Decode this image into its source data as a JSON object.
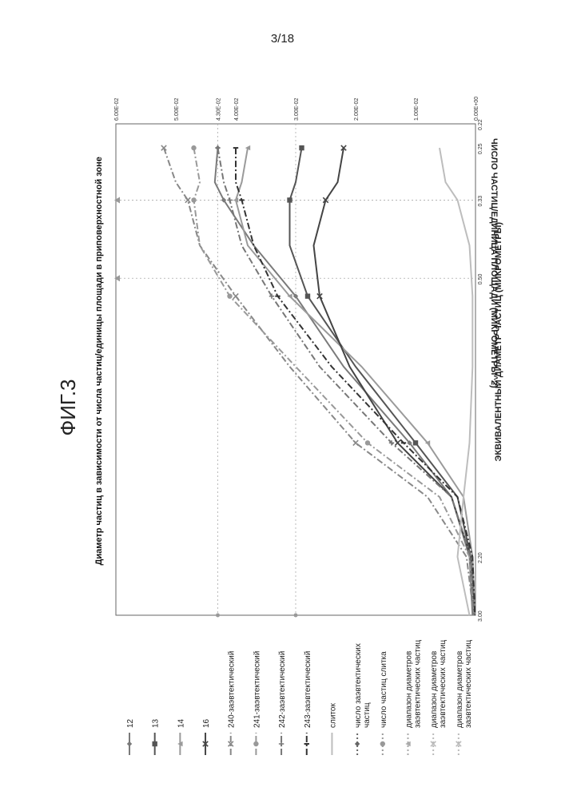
{
  "page_number": "3/18",
  "figure_label": "ФИГ.3",
  "chart_data": {
    "type": "line",
    "title": "Диаметр частиц в зависимости от числа частиц/единицы площади в приповерхностной зоне",
    "xlabel": "ЭКВИВАЛЕНТНЫЙ ДИАМЕТР ЧАСТИЦ (МИКРОМЕТРЫ)",
    "ylabel": "ЧИСЛО ЧАСТИЦ/ЕДИНИЦА ПЛОЩАДИ (МИКРОМЕТРЫ^2)",
    "x_tick_labels": [
      "0.22",
      "0.25",
      "0.33",
      "0.50",
      "2.20",
      "3.00"
    ],
    "y_tick_labels": [
      "0.00E+00",
      "1.00E-02",
      "2.00E-02",
      "3.00E-02",
      "4.00E-02",
      "4.30E-02",
      "5.00E-02",
      "6.00E-02"
    ],
    "y_ticks": [
      0,
      0.01,
      0.02,
      0.03,
      0.04,
      0.043,
      0.05,
      0.06
    ],
    "ylim": [
      0,
      0.06
    ],
    "grid": "dotted reference lines",
    "legend_position": "bottom",
    "series": [
      {
        "name": "12",
        "color": "#7a7a7a",
        "dash": "",
        "marker": "diamond",
        "points": [
          [
            0.25,
            0.043
          ],
          [
            0.3,
            0.0435
          ],
          [
            0.33,
            0.042
          ],
          [
            0.42,
            0.037
          ],
          [
            0.55,
            0.03
          ],
          [
            0.8,
            0.022
          ],
          [
            1.2,
            0.011
          ],
          [
            1.6,
            0.004
          ],
          [
            2.2,
            0.001
          ],
          [
            3.0,
            0.0005
          ]
        ]
      },
      {
        "name": "13",
        "color": "#555555",
        "dash": "",
        "marker": "square",
        "points": [
          [
            0.25,
            0.029
          ],
          [
            0.3,
            0.03
          ],
          [
            0.33,
            0.031
          ],
          [
            0.42,
            0.031
          ],
          [
            0.55,
            0.028
          ],
          [
            0.8,
            0.02
          ],
          [
            1.2,
            0.01
          ],
          [
            1.6,
            0.003
          ],
          [
            2.2,
            0.0008
          ],
          [
            3.0,
            0.0002
          ]
        ]
      },
      {
        "name": "14",
        "color": "#9a9a9a",
        "dash": "",
        "marker": "triangle",
        "points": [
          [
            0.25,
            0.038
          ],
          [
            0.3,
            0.039
          ],
          [
            0.33,
            0.04
          ],
          [
            0.42,
            0.038
          ],
          [
            0.55,
            0.031
          ],
          [
            0.8,
            0.019
          ],
          [
            1.2,
            0.008
          ],
          [
            1.6,
            0.002
          ],
          [
            2.2,
            0.0005
          ],
          [
            3.0,
            0.0001
          ]
        ]
      },
      {
        "name": "16",
        "color": "#444444",
        "dash": "",
        "marker": "x",
        "points": [
          [
            0.25,
            0.022
          ],
          [
            0.3,
            0.023
          ],
          [
            0.33,
            0.025
          ],
          [
            0.42,
            0.027
          ],
          [
            0.55,
            0.026
          ],
          [
            0.8,
            0.021
          ],
          [
            1.2,
            0.013
          ],
          [
            1.6,
            0.004
          ],
          [
            2.2,
            0.0008
          ],
          [
            3.0,
            0.0002
          ]
        ]
      },
      {
        "name": "240-заэвтектический",
        "color": "#888888",
        "dash": "8,3,2,3",
        "marker": "x",
        "points": [
          [
            0.25,
            0.052
          ],
          [
            0.3,
            0.05
          ],
          [
            0.33,
            0.048
          ],
          [
            0.42,
            0.046
          ],
          [
            0.55,
            0.04
          ],
          [
            0.8,
            0.031
          ],
          [
            1.2,
            0.02
          ],
          [
            1.6,
            0.008
          ],
          [
            2.2,
            0.0015
          ],
          [
            3.0,
            0.0003
          ]
        ]
      },
      {
        "name": "241-заэвтектический",
        "color": "#999999",
        "dash": "8,3,2,3",
        "marker": "circle",
        "points": [
          [
            0.25,
            0.047
          ],
          [
            0.3,
            0.046
          ],
          [
            0.33,
            0.047
          ],
          [
            0.42,
            0.046
          ],
          [
            0.55,
            0.041
          ],
          [
            0.8,
            0.03
          ],
          [
            1.2,
            0.018
          ],
          [
            1.6,
            0.006
          ],
          [
            2.2,
            0.001
          ],
          [
            3.0,
            0.0002
          ]
        ]
      },
      {
        "name": "242-заэвтектический",
        "color": "#777777",
        "dash": "8,3,2,3",
        "marker": "plus",
        "points": [
          [
            0.25,
            0.043
          ],
          [
            0.3,
            0.042
          ],
          [
            0.33,
            0.041
          ],
          [
            0.42,
            0.039
          ],
          [
            0.55,
            0.034
          ],
          [
            0.8,
            0.026
          ],
          [
            1.2,
            0.014
          ],
          [
            1.6,
            0.004
          ],
          [
            2.2,
            0.0008
          ],
          [
            3.0,
            0.0002
          ]
        ]
      },
      {
        "name": "243-заэвтектический",
        "color": "#333333",
        "dash": "8,3,2,3",
        "marker": "dash",
        "points": [
          [
            0.25,
            0.04
          ],
          [
            0.3,
            0.04
          ],
          [
            0.33,
            0.039
          ],
          [
            0.42,
            0.037
          ],
          [
            0.55,
            0.033
          ],
          [
            0.8,
            0.024
          ],
          [
            1.2,
            0.012
          ],
          [
            1.6,
            0.003
          ],
          [
            2.2,
            0.0005
          ],
          [
            3.0,
            0.0001
          ]
        ]
      },
      {
        "name": "слиток",
        "color": "#bdbdbd",
        "dash": "",
        "marker": "none",
        "points": [
          [
            0.25,
            0.006
          ],
          [
            0.3,
            0.005
          ],
          [
            0.33,
            0.003
          ],
          [
            0.42,
            0.001
          ],
          [
            0.55,
            0.0005
          ],
          [
            0.8,
            0.0005
          ],
          [
            1.2,
            0.001
          ],
          [
            1.6,
            0.002
          ],
          [
            2.2,
            0.003
          ],
          [
            3.0,
            0.001
          ]
        ]
      }
    ],
    "reference_lines": [
      {
        "name": "число заэвтектических частиц",
        "x": 0.33
      },
      {
        "name": "число частиц слитка",
        "y": 0.043
      },
      {
        "name": "диапазон диаметров заэвтектических частиц",
        "y": 0.03
      },
      {
        "name": "диапазон диаметров заэвтектических частиц",
        "x": 0.5
      }
    ],
    "legend": [
      {
        "label": "12",
        "color": "#7a7a7a",
        "dash": "",
        "marker": "diamond"
      },
      {
        "label": "13",
        "color": "#555555",
        "dash": "",
        "marker": "square"
      },
      {
        "label": "14",
        "color": "#9a9a9a",
        "dash": "",
        "marker": "triangle"
      },
      {
        "label": "16",
        "color": "#444444",
        "dash": "",
        "marker": "x"
      },
      {
        "label": "240-заэвтектический",
        "color": "#888888",
        "dash": "8,3,2,3",
        "marker": "x"
      },
      {
        "label": "241-заэвтектический",
        "color": "#999999",
        "dash": "8,3,2,3",
        "marker": "circle"
      },
      {
        "label": "242-заэвтектический",
        "color": "#777777",
        "dash": "8,3,2,3",
        "marker": "plus"
      },
      {
        "label": "243-заэвтектический",
        "color": "#333333",
        "dash": "8,3,2,3",
        "marker": "dash"
      },
      {
        "label": "слиток",
        "color": "#bdbdbd",
        "dash": "",
        "marker": "none"
      },
      {
        "label": "число заэвтектических частиц",
        "color": "#666666",
        "dash": "2,3",
        "marker": "diamond"
      },
      {
        "label": "число частиц слитка",
        "color": "#999999",
        "dash": "2,3",
        "marker": "circle"
      },
      {
        "label": "диапазон диаметров заэвтектических частиц",
        "color": "#aaaaaa",
        "dash": "2,3",
        "marker": "triangle"
      },
      {
        "label": "диапазон диаметров заэвтектических частиц",
        "color": "#bbbbbb",
        "dash": "2,3",
        "marker": "x"
      },
      {
        "label": "диапазон диаметров заэвтектических частиц",
        "color": "#bbbbbb",
        "dash": "2,3",
        "marker": "star"
      }
    ]
  }
}
